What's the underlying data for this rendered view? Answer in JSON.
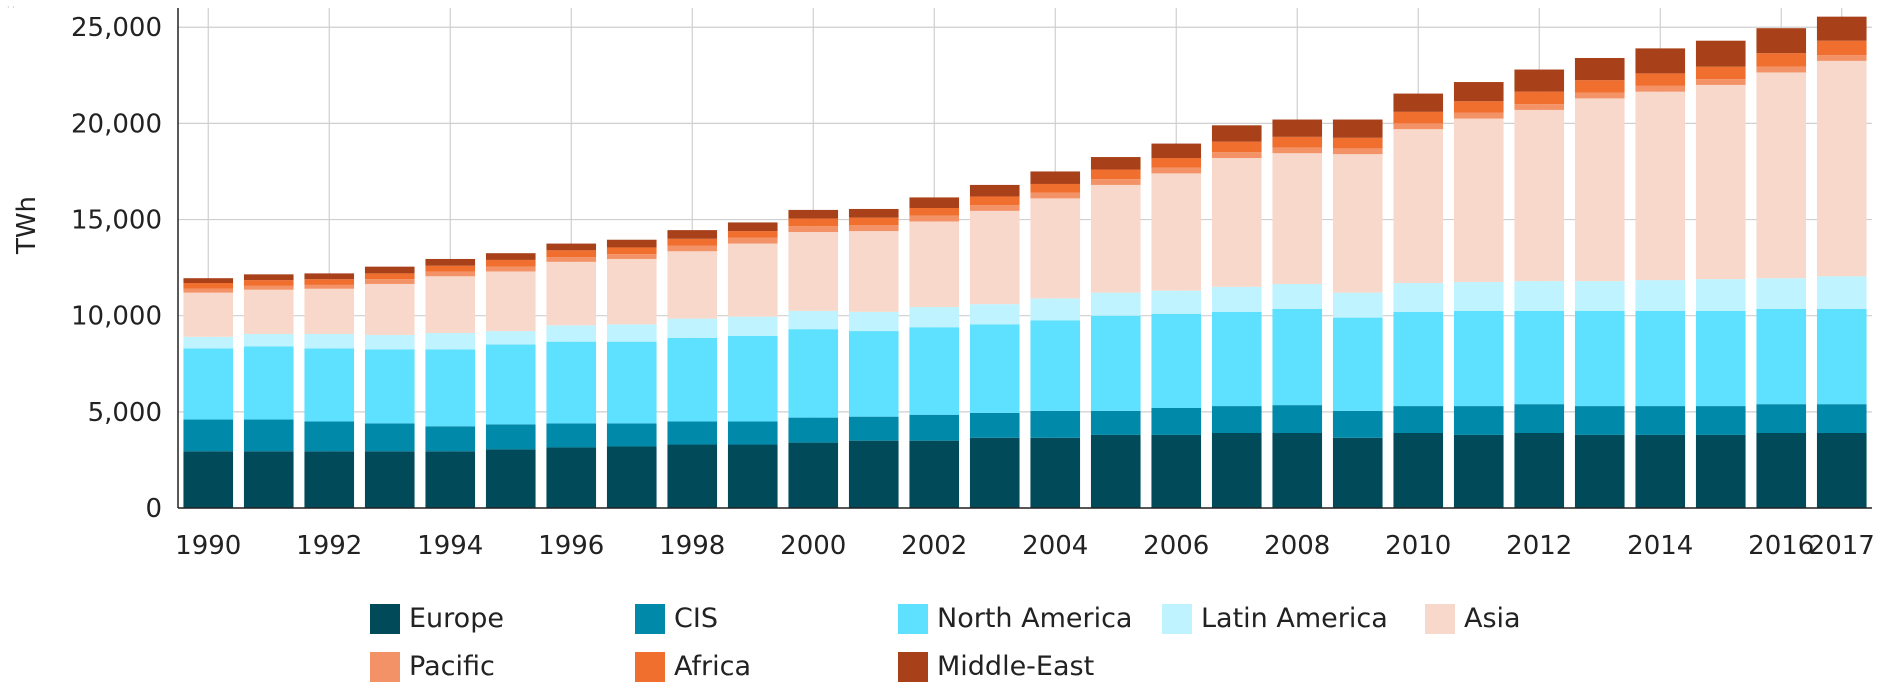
{
  "corner_mark": "· ·",
  "chart_data": {
    "type": "bar",
    "stacked": true,
    "ylabel": "TWh",
    "ylim": [
      0,
      26000
    ],
    "yticks": [
      0,
      5000,
      10000,
      15000,
      20000,
      25000
    ],
    "ytick_labels": [
      "0",
      "5,000",
      "10,000",
      "15,000",
      "20,000",
      "25,000"
    ],
    "x_tick_labels": [
      "1990",
      "1992",
      "1994",
      "1996",
      "1998",
      "2000",
      "2002",
      "2004",
      "2006",
      "2008",
      "2010",
      "2012",
      "2014",
      "2016",
      "2017"
    ],
    "grid": true,
    "legend_position": "bottom",
    "categories": [
      "1990",
      "1991",
      "1992",
      "1993",
      "1994",
      "1995",
      "1996",
      "1997",
      "1998",
      "1999",
      "2000",
      "2001",
      "2002",
      "2003",
      "2004",
      "2005",
      "2006",
      "2007",
      "2008",
      "2009",
      "2010",
      "2011",
      "2012",
      "2013",
      "2014",
      "2015",
      "2016",
      "2017"
    ],
    "series": [
      {
        "name": "Europe",
        "color": "#004a5a",
        "values": [
          2950,
          2950,
          2950,
          2950,
          2950,
          3050,
          3150,
          3200,
          3300,
          3300,
          3400,
          3500,
          3500,
          3650,
          3650,
          3800,
          3800,
          3900,
          3900,
          3650,
          3900,
          3800,
          3900,
          3800,
          3800,
          3800,
          3900,
          3900
        ]
      },
      {
        "name": "CIS",
        "color": "#0089a8",
        "values": [
          1650,
          1650,
          1550,
          1450,
          1300,
          1300,
          1250,
          1200,
          1200,
          1200,
          1300,
          1250,
          1350,
          1300,
          1400,
          1250,
          1400,
          1400,
          1450,
          1400,
          1400,
          1500,
          1500,
          1500,
          1500,
          1500,
          1500,
          1500
        ]
      },
      {
        "name": "North America",
        "color": "#5ee0ff",
        "values": [
          3700,
          3800,
          3800,
          3850,
          4000,
          4150,
          4250,
          4250,
          4350,
          4450,
          4600,
          4450,
          4550,
          4600,
          4700,
          4950,
          4900,
          4900,
          5000,
          4850,
          4900,
          4950,
          4850,
          4950,
          4950,
          4950,
          4950,
          4950
        ]
      },
      {
        "name": "Latin America",
        "color": "#bff3ff",
        "values": [
          600,
          650,
          750,
          750,
          850,
          700,
          850,
          900,
          1000,
          1000,
          950,
          1000,
          1050,
          1050,
          1150,
          1200,
          1200,
          1300,
          1300,
          1300,
          1500,
          1500,
          1550,
          1550,
          1600,
          1650,
          1600,
          1700
        ]
      },
      {
        "name": "Asia",
        "color": "#f8d8ca",
        "values": [
          2300,
          2300,
          2350,
          2650,
          2950,
          3100,
          3300,
          3400,
          3500,
          3800,
          4100,
          4200,
          4450,
          4850,
          5200,
          5600,
          6100,
          6700,
          6800,
          7200,
          8000,
          8500,
          8900,
          9500,
          9800,
          10100,
          10700,
          11200
        ]
      },
      {
        "name": "Pacific",
        "color": "#f29266",
        "values": [
          200,
          200,
          200,
          250,
          250,
          250,
          250,
          250,
          300,
          300,
          300,
          300,
          300,
          300,
          300,
          300,
          300,
          300,
          300,
          300,
          300,
          300,
          300,
          300,
          300,
          300,
          300,
          300
        ]
      },
      {
        "name": "Africa",
        "color": "#f06e2e",
        "values": [
          300,
          300,
          300,
          300,
          300,
          350,
          350,
          350,
          350,
          350,
          400,
          400,
          400,
          450,
          450,
          500,
          500,
          550,
          550,
          550,
          600,
          600,
          650,
          650,
          650,
          650,
          700,
          750
        ]
      },
      {
        "name": "Middle-East",
        "color": "#a8411a",
        "values": [
          250,
          300,
          300,
          350,
          350,
          350,
          350,
          400,
          450,
          450,
          450,
          450,
          550,
          600,
          650,
          650,
          750,
          850,
          900,
          950,
          950,
          1000,
          1150,
          1150,
          1300,
          1350,
          1300,
          1250
        ]
      }
    ]
  }
}
